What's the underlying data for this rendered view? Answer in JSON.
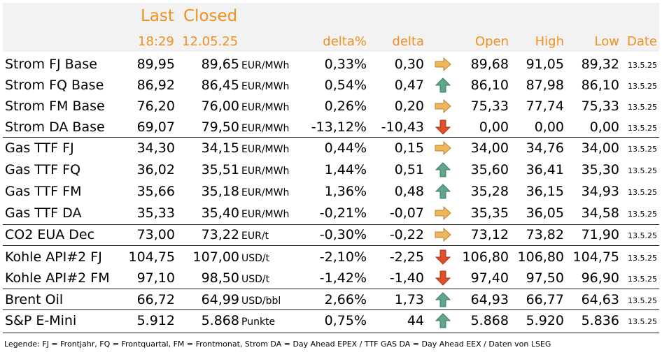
{
  "header": {
    "last": "Last",
    "closed": "Closed",
    "last_time": "18:29",
    "closed_date": "12.05.25",
    "delta_pct": "delta%",
    "delta": "delta",
    "open": "Open",
    "high": "High",
    "low": "Low",
    "date": "Date"
  },
  "colors": {
    "header_text": "#f0901e",
    "header_bg": "#f2f2f2",
    "arrow_up": "#5fa68a",
    "arrow_right": "#f0b65c",
    "arrow_down": "#e0502a"
  },
  "rows": [
    {
      "name": "Strom FJ Base",
      "last": "89,95",
      "closed": "89,65",
      "unit": "EUR/MWh",
      "delta_pct": "0,33%",
      "delta": "0,30",
      "trend": "right",
      "open": "89,68",
      "high": "91,05",
      "low": "89,32",
      "date": "13.5.25"
    },
    {
      "name": "Strom FQ Base",
      "last": "86,92",
      "closed": "86,45",
      "unit": "EUR/MWh",
      "delta_pct": "0,54%",
      "delta": "0,47",
      "trend": "up",
      "open": "86,10",
      "high": "87,98",
      "low": "86,10",
      "date": "13.5.25"
    },
    {
      "name": "Strom FM Base",
      "last": "76,20",
      "closed": "76,00",
      "unit": "EUR/MWh",
      "delta_pct": "0,26%",
      "delta": "0,20",
      "trend": "right",
      "open": "75,33",
      "high": "77,74",
      "low": "75,33",
      "date": "13.5.25"
    },
    {
      "name": "Strom DA Base",
      "last": "69,07",
      "closed": "79,50",
      "unit": "EUR/MWh",
      "delta_pct": "-13,12%",
      "delta": "-10,43",
      "trend": "down",
      "open": "0,00",
      "high": "0,00",
      "low": "0,00",
      "date": "13.5.25"
    },
    {
      "name": "Gas TTF FJ",
      "last": "34,30",
      "closed": "34,15",
      "unit": "EUR/MWh",
      "delta_pct": "0,44%",
      "delta": "0,15",
      "trend": "right",
      "open": "34,00",
      "high": "34,76",
      "low": "34,00",
      "date": "13.5.25"
    },
    {
      "name": "Gas TTF FQ",
      "last": "36,02",
      "closed": "35,51",
      "unit": "EUR/MWh",
      "delta_pct": "1,44%",
      "delta": "0,51",
      "trend": "up",
      "open": "35,60",
      "high": "36,41",
      "low": "35,30",
      "date": "13.5.25"
    },
    {
      "name": "Gas TTF FM",
      "last": "35,66",
      "closed": "35,18",
      "unit": "EUR/MWh",
      "delta_pct": "1,36%",
      "delta": "0,48",
      "trend": "up",
      "open": "35,28",
      "high": "36,15",
      "low": "34,93",
      "date": "13.5.25"
    },
    {
      "name": "Gas TTF DA",
      "last": "35,33",
      "closed": "35,40",
      "unit": "EUR/MWh",
      "delta_pct": "-0,21%",
      "delta": "-0,07",
      "trend": "right",
      "open": "35,35",
      "high": "36,05",
      "low": "34,58",
      "date": "13.5.25"
    },
    {
      "name": "CO2 EUA Dec",
      "last": "73,00",
      "closed": "73,22",
      "unit": "EUR/t",
      "delta_pct": "-0,30%",
      "delta": "-0,22",
      "trend": "right",
      "open": "73,12",
      "high": "73,82",
      "low": "71,90",
      "date": "13.5.25"
    },
    {
      "name": "Kohle API#2 FJ",
      "last": "104,75",
      "closed": "107,00",
      "unit": "USD/t",
      "delta_pct": "-2,10%",
      "delta": "-2,25",
      "trend": "down",
      "open": "106,80",
      "high": "106,80",
      "low": "104,75",
      "date": "13.5.25"
    },
    {
      "name": "Kohle API#2 FM",
      "last": "97,10",
      "closed": "98,50",
      "unit": "USD/t",
      "delta_pct": "-1,42%",
      "delta": "-1,40",
      "trend": "down",
      "open": "97,40",
      "high": "97,50",
      "low": "96,90",
      "date": "13.5.25"
    },
    {
      "name": "Brent Oil",
      "last": "66,72",
      "closed": "64,99",
      "unit": "USD/bbl",
      "delta_pct": "2,66%",
      "delta": "1,73",
      "trend": "up",
      "open": "64,93",
      "high": "66,77",
      "low": "64,63",
      "date": "13.5.25"
    },
    {
      "name": "S&P E-Mini",
      "last": "5.912",
      "closed": "5.868",
      "unit": "Punkte",
      "delta_pct": "0,75%",
      "delta": "44",
      "trend": "up",
      "open": "5.868",
      "high": "5.920",
      "low": "5.836",
      "date": "13.5.25"
    }
  ],
  "legend": "Legende: FJ = Frontjahr, FQ = Frontquartal, FM = Frontmonat, Strom DA = Day Ahead EPEX / TTF GAS DA = Day Ahead EEX / Daten von LSEG"
}
